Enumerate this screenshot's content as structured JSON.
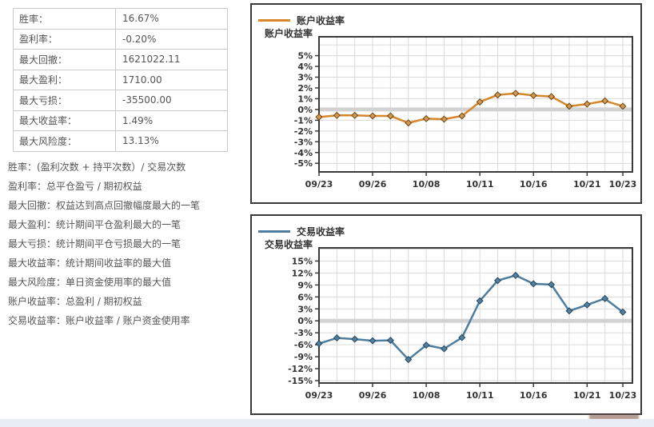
{
  "stats_table": {
    "rows": [
      {
        "label": "胜率：",
        "value": "16.67%"
      },
      {
        "label": "盈利率：",
        "value": "-0.20%"
      },
      {
        "label": "最大回撤：",
        "value": "1621022.11"
      },
      {
        "label": "最大盈利：",
        "value": "1710.00"
      },
      {
        "label": "最大亏损：",
        "value": "-35500.00"
      },
      {
        "label": "最大收益率：",
        "value": "1.49%"
      },
      {
        "label": "最大风险度：",
        "value": "13.13%"
      }
    ]
  },
  "definitions": [
    "胜率：(盈利次数 + 持平次数）/ 交易次数",
    "盈利率：总平仓盈亏 / 期初权益",
    "最大回撤：权益达到高点回撤幅度最大的一笔",
    "最大盈利：统计期间平仓盈利最大的一笔",
    "最大亏损：统计期间平仓亏损最大的一笔",
    "最大收益率：统计期间收益率的最大值",
    "最大风险度：单日资金使用率的最大值",
    "账户收益率：总盈利 / 期初权益",
    "交易收益率：账户收益率 / 账户资金使用率"
  ],
  "chart_data": [
    {
      "type": "line",
      "title": "账户收益率",
      "legend": "账户收益率",
      "ylabel": "账户收益率",
      "line_color": "#d8862b",
      "marker_fill": "#d09a55",
      "marker_stroke": "#70430f",
      "x": [
        "09/23",
        "09/24",
        "09/25",
        "09/26",
        "09/27",
        "09/30",
        "10/08",
        "10/09",
        "10/10",
        "10/11",
        "10/14",
        "10/15",
        "10/16",
        "10/17",
        "10/18",
        "10/21",
        "10/22",
        "10/23"
      ],
      "values": [
        -0.7,
        -0.55,
        -0.55,
        -0.6,
        -0.6,
        -1.25,
        -0.85,
        -0.9,
        -0.6,
        0.7,
        1.35,
        1.5,
        1.3,
        1.2,
        0.3,
        0.5,
        0.8,
        0.3
      ],
      "x_tick_labels": [
        "09/23",
        "09/26",
        "10/08",
        "10/11",
        "10/16",
        "10/21",
        "10/23"
      ],
      "x_tick_indices": [
        0,
        3,
        6,
        9,
        12,
        15,
        17
      ],
      "y_tick_values": [
        5,
        4,
        3,
        2,
        1,
        0,
        -1,
        -2,
        -3,
        -4,
        -5
      ],
      "y_tick_step": 1,
      "ylim": [
        -5.8,
        6.75
      ],
      "grid": true,
      "legend_position": "top-left",
      "zero_line": true
    },
    {
      "type": "line",
      "title": "交易收益率",
      "legend": "交易收益率",
      "ylabel": "交易收益率",
      "line_color": "#4e7d9f",
      "marker_fill": "#54809f",
      "marker_stroke": "#24455e",
      "x": [
        "09/23",
        "09/24",
        "09/25",
        "09/26",
        "09/27",
        "09/30",
        "10/08",
        "10/09",
        "10/10",
        "10/11",
        "10/14",
        "10/15",
        "10/16",
        "10/17",
        "10/18",
        "10/21",
        "10/22",
        "10/23"
      ],
      "values": [
        -5.7,
        -4.3,
        -4.6,
        -5.0,
        -4.9,
        -9.7,
        -6.1,
        -7.0,
        -4.2,
        5.0,
        10.1,
        11.4,
        9.3,
        9.1,
        2.5,
        4.0,
        5.6,
        2.2
      ],
      "x_tick_labels": [
        "09/23",
        "09/26",
        "10/08",
        "10/11",
        "10/16",
        "10/21",
        "10/23"
      ],
      "x_tick_indices": [
        0,
        3,
        6,
        9,
        12,
        15,
        17
      ],
      "y_tick_values": [
        15,
        12,
        9,
        6,
        3,
        0,
        -3,
        -6,
        -9,
        -12,
        -15
      ],
      "y_tick_step": 3,
      "ylim": [
        -15.6,
        18.3
      ],
      "grid": true,
      "legend_position": "top-left",
      "zero_line": true
    }
  ]
}
